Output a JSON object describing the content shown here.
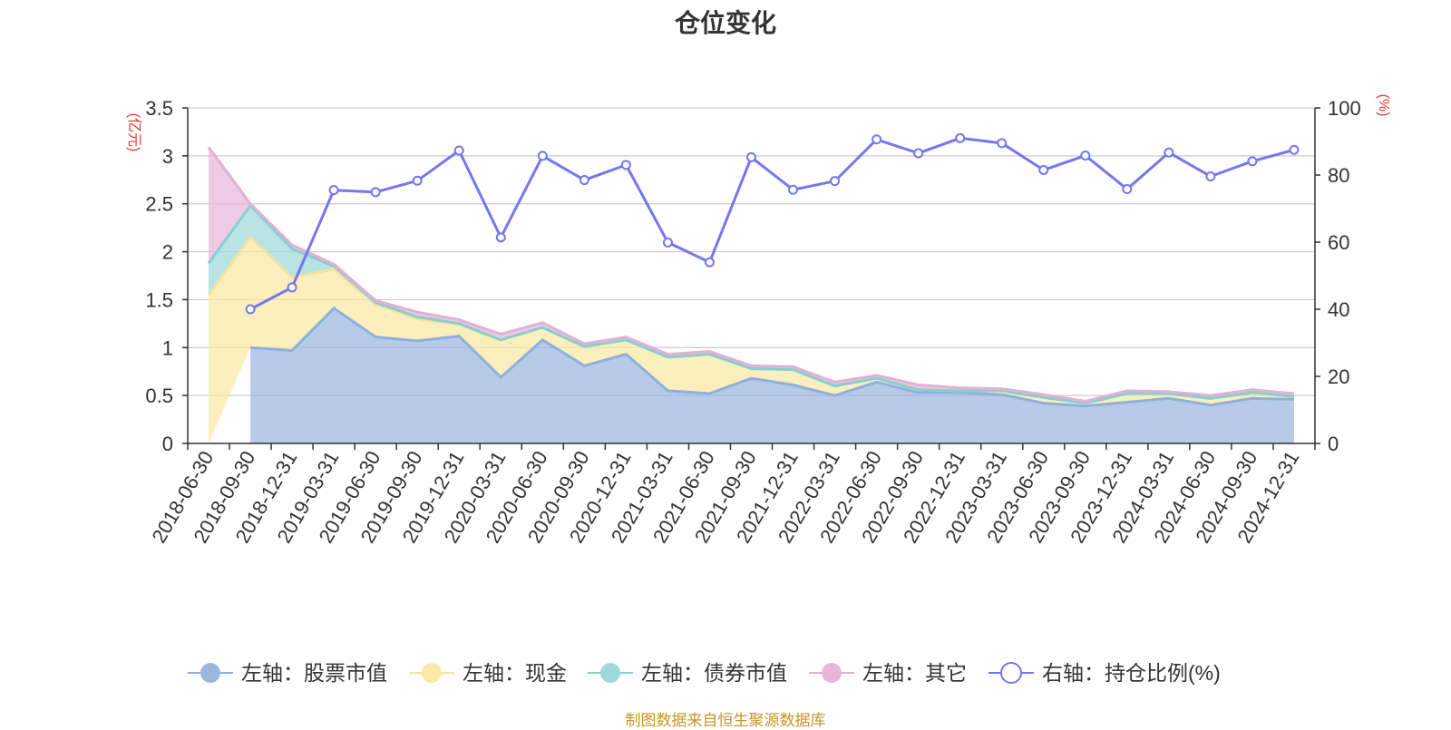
{
  "title": "仓位变化",
  "source": "制图数据来自恒生聚源数据库",
  "colors": {
    "stock": "#9bb7e0",
    "stock_line": "#8fb0dd",
    "cash": "#fbe9a5",
    "cash_line": "#f3e2a0",
    "bond": "#9fd8da",
    "bond_line": "#86cfd0",
    "other": "#e8b6d8",
    "other_line": "#e3b0d5",
    "ratio": "#7477ef",
    "grid": "#cccccc",
    "axis": "#333333"
  },
  "chart_data": {
    "type": "area",
    "title": "仓位变化",
    "categories": [
      "2018-06-30",
      "2018-09-30",
      "2018-12-31",
      "2019-03-31",
      "2019-06-30",
      "2019-09-30",
      "2019-12-31",
      "2020-03-31",
      "2020-06-30",
      "2020-09-30",
      "2020-12-31",
      "2021-03-31",
      "2021-06-30",
      "2021-09-30",
      "2021-12-31",
      "2022-03-31",
      "2022-06-30",
      "2022-09-30",
      "2022-12-31",
      "2023-03-31",
      "2023-06-30",
      "2023-09-30",
      "2023-12-31",
      "2024-03-31",
      "2024-06-30",
      "2024-09-30",
      "2024-12-31"
    ],
    "left_axis": {
      "unit": "(亿元)",
      "ylim": [
        0,
        3.5
      ],
      "ticks": [
        "0",
        "0.5",
        "1",
        "1.5",
        "2",
        "2.5",
        "3",
        "3.5"
      ]
    },
    "right_axis": {
      "unit": "(%)",
      "ylim": [
        0,
        100
      ],
      "ticks": [
        "0",
        "20",
        "40",
        "60",
        "80",
        "100"
      ]
    },
    "series": [
      {
        "name": "左轴：股票市值",
        "axis": "left",
        "stack": true,
        "values": [
          null,
          1.0,
          0.97,
          1.41,
          1.11,
          1.07,
          1.12,
          0.69,
          1.08,
          0.81,
          0.93,
          0.55,
          0.52,
          0.68,
          0.61,
          0.5,
          0.64,
          0.53,
          0.53,
          0.51,
          0.42,
          0.39,
          0.43,
          0.47,
          0.4,
          0.47,
          0.46
        ]
      },
      {
        "name": "左轴：现金",
        "axis": "left",
        "stack": true,
        "values": [
          1.55,
          1.15,
          0.76,
          0.41,
          0.34,
          0.23,
          0.12,
          0.39,
          0.13,
          0.2,
          0.15,
          0.35,
          0.41,
          0.1,
          0.16,
          0.1,
          0.04,
          0.03,
          0.02,
          0.04,
          0.06,
          0.03,
          0.09,
          0.05,
          0.07,
          0.06,
          0.03
        ]
      },
      {
        "name": "左轴：债券市值",
        "axis": "left",
        "stack": true,
        "values": [
          0.33,
          0.33,
          0.3,
          0.03,
          0.02,
          0.02,
          0.01,
          0.0,
          0.0,
          0.0,
          0.0,
          0.0,
          0.0,
          0.0,
          0.0,
          0.0,
          0.0,
          0.0,
          0.0,
          0.0,
          0.0,
          0.0,
          0.0,
          0.0,
          0.0,
          0.0,
          0.0
        ]
      },
      {
        "name": "左轴：其它",
        "axis": "left",
        "stack": true,
        "values": [
          1.21,
          0.02,
          0.04,
          0.02,
          0.02,
          0.05,
          0.04,
          0.06,
          0.05,
          0.03,
          0.03,
          0.03,
          0.03,
          0.03,
          0.03,
          0.04,
          0.03,
          0.05,
          0.03,
          0.02,
          0.03,
          0.02,
          0.03,
          0.02,
          0.03,
          0.03,
          0.03
        ]
      },
      {
        "name": "右轴：持仓比例(%)",
        "axis": "right",
        "type": "line",
        "values": [
          null,
          40,
          46.5,
          75.5,
          74.9,
          78.3,
          87.3,
          61.4,
          85.7,
          78.5,
          83,
          59.9,
          54,
          85.3,
          75.6,
          78.2,
          90.6,
          86.5,
          91,
          89.5,
          81.5,
          85.8,
          75.8,
          86.7,
          79.6,
          84.1,
          87.5
        ]
      }
    ],
    "legend": [
      "左轴：股票市值",
      "左轴：现金",
      "左轴：债券市值",
      "左轴：其它",
      "右轴：持仓比例(%)"
    ],
    "legend_position": "bottom"
  }
}
